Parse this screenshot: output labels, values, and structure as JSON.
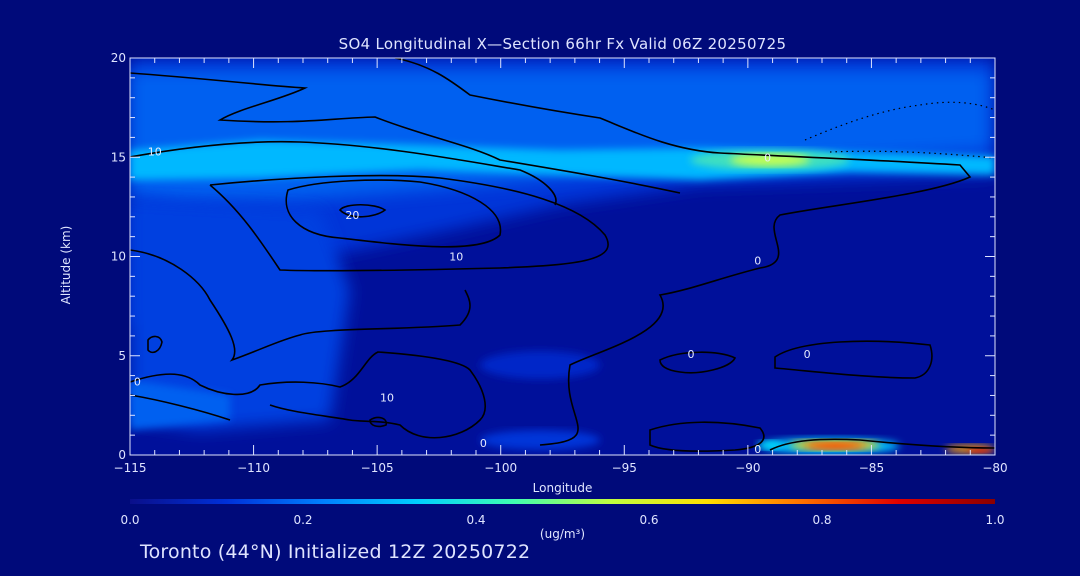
{
  "chart_data": {
    "type": "heatmap",
    "title": "SO4 Longitudinal X—Section 66hr  Fx Valid 06Z 20250725",
    "xlabel": "Longitude",
    "ylabel": "Altitude (km)",
    "xlim": [
      -115,
      -80
    ],
    "ylim": [
      0,
      20
    ],
    "x_ticks": [
      -115,
      -110,
      -105,
      -100,
      -95,
      -90,
      -85,
      -80
    ],
    "y_ticks": [
      0,
      5,
      10,
      15,
      20
    ],
    "colorbar": {
      "unit": "(ug/m³)",
      "range": [
        0.0,
        1.0
      ],
      "ticks": [
        "0.0",
        "0.2",
        "0.4",
        "0.6",
        "0.8",
        "1.0"
      ],
      "colors": [
        "#0a0f8a",
        "#0030d8",
        "#0080ff",
        "#00d0ff",
        "#40ffb0",
        "#c0ff40",
        "#ffe000",
        "#ff7000",
        "#e00000",
        "#8a0000"
      ]
    },
    "contour_labels": [
      {
        "text": "10",
        "x": -114,
        "y": 15.3
      },
      {
        "text": "20",
        "x": -106,
        "y": 12.1
      },
      {
        "text": "10",
        "x": -101.8,
        "y": 10.0
      },
      {
        "text": "0",
        "x": -89.2,
        "y": 15.0
      },
      {
        "text": "0",
        "x": -89.6,
        "y": 9.8
      },
      {
        "text": "0",
        "x": -92.3,
        "y": 5.1
      },
      {
        "text": "0",
        "x": -87.6,
        "y": 5.1
      },
      {
        "text": "0",
        "x": -114.7,
        "y": 3.7
      },
      {
        "text": "10",
        "x": -104.6,
        "y": 2.9
      },
      {
        "text": "0",
        "x": -100.7,
        "y": 0.6
      },
      {
        "text": "0",
        "x": -89.6,
        "y": 0.3
      }
    ]
  },
  "footer": {
    "text": "Toronto (44°N) Initialized 12Z 20250722"
  }
}
